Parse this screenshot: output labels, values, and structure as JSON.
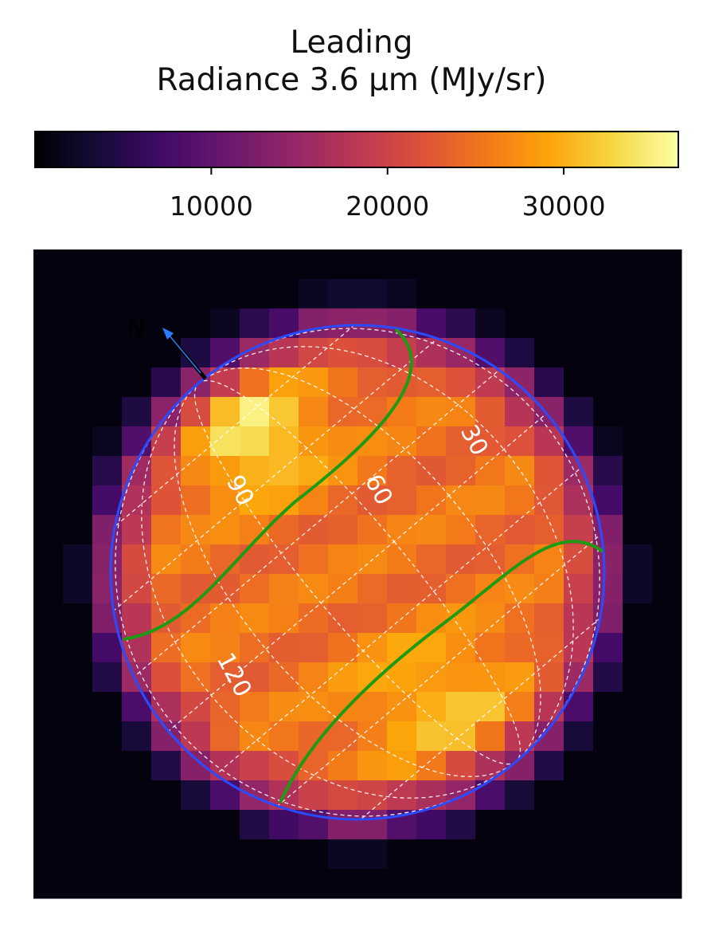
{
  "chart_data": {
    "type": "heatmap",
    "title": "Leading",
    "subtitle": "Radiance 3.6 μm (MJy/sr)",
    "colormap": "inferno",
    "colorbar": {
      "range": [
        0,
        36500
      ],
      "ticks": [
        10000,
        20000,
        30000
      ],
      "tick_labels": [
        "10000",
        "20000",
        "30000"
      ],
      "orientation": "horizontal",
      "placement": "top"
    },
    "longitude_labels": [
      "30",
      "60",
      "90",
      "120"
    ],
    "north_label": "N",
    "disk_outline_color": "#2a4bff",
    "terminator_color": "#1f9a12",
    "grid_color": "#ffffff"
  }
}
